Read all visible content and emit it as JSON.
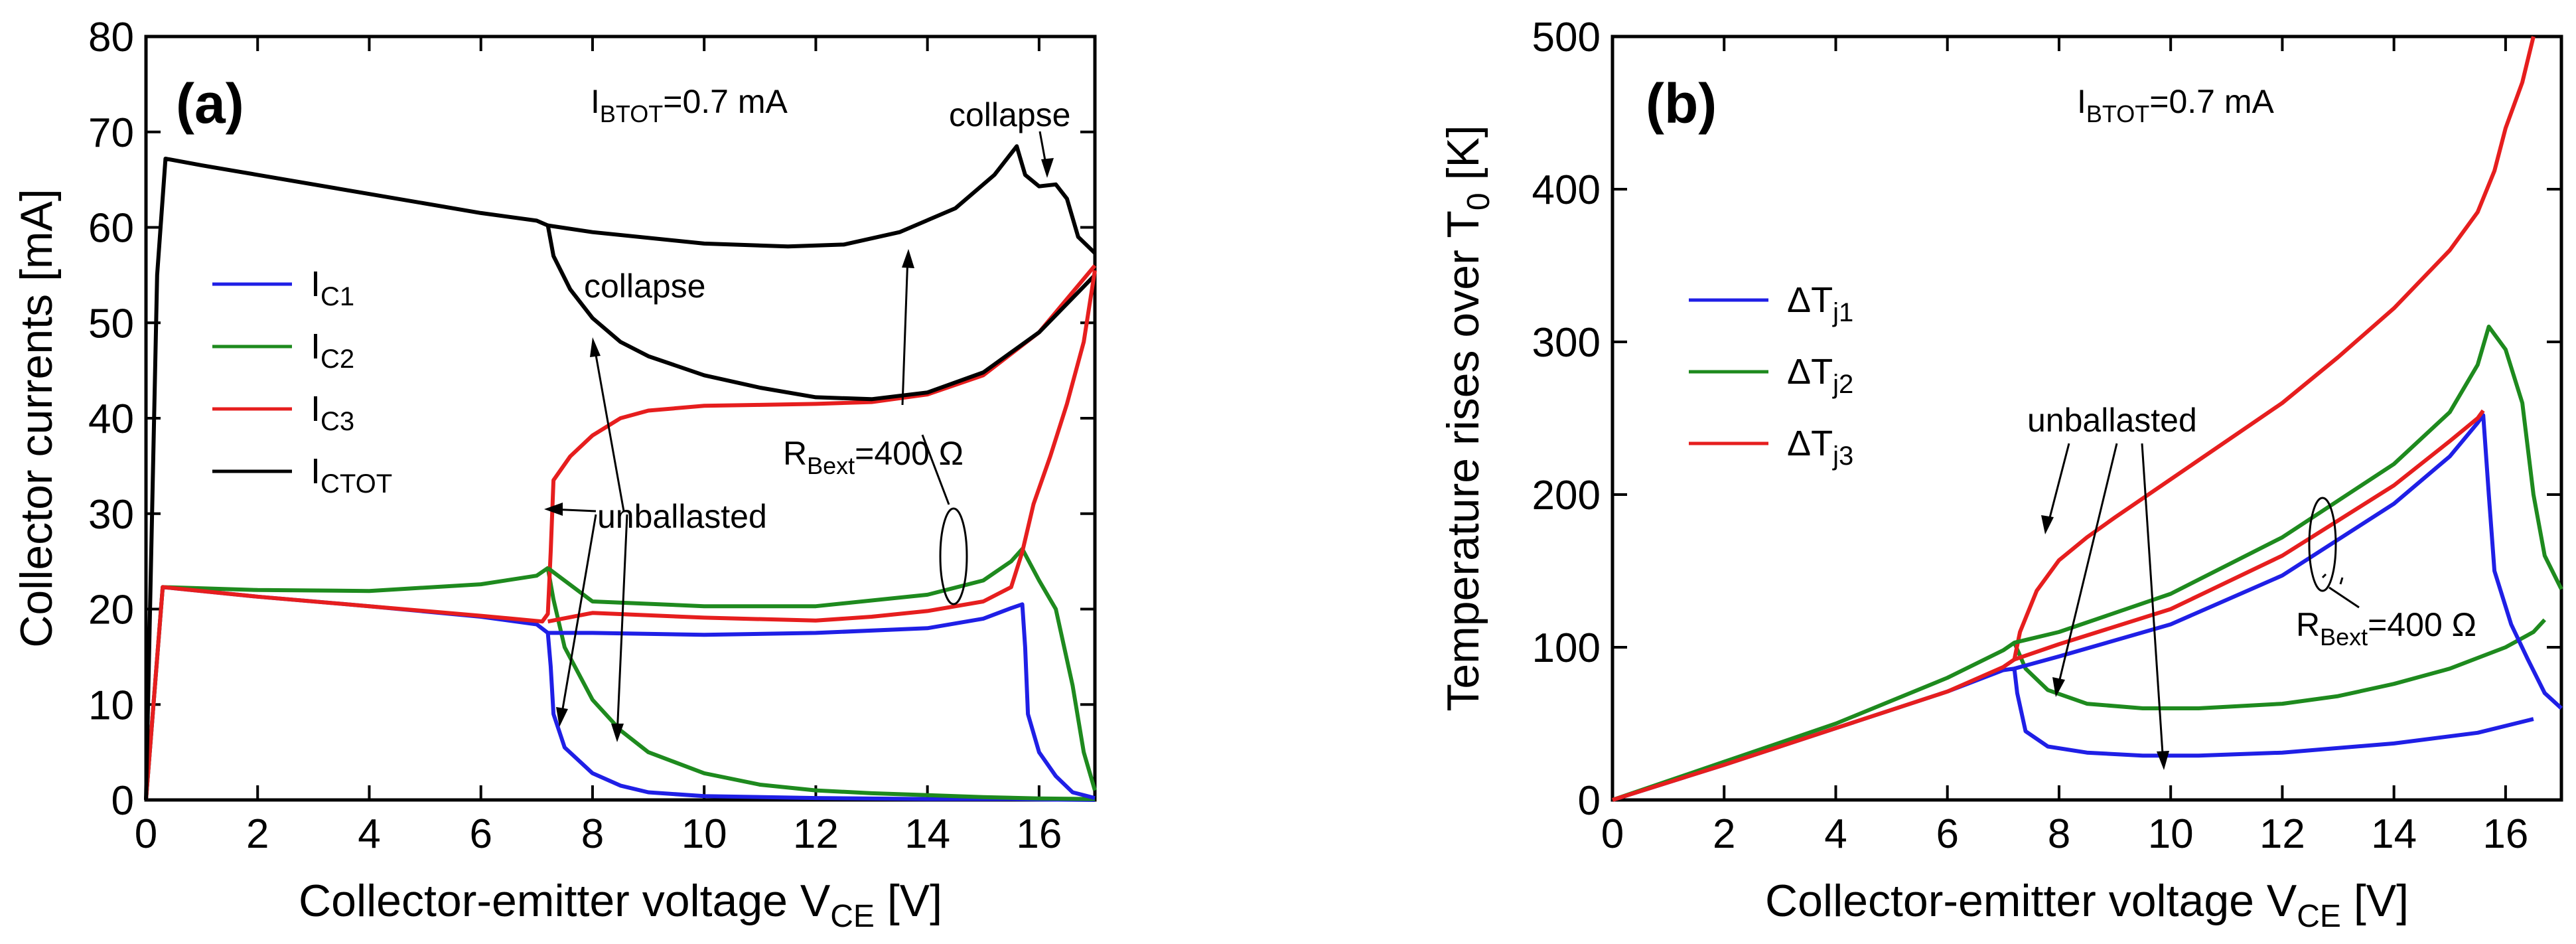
{
  "chart_data": [
    {
      "type": "line",
      "panel_label": "(a)",
      "xlabel": "Collector-emitter voltage V",
      "xlabel_sub": "CE",
      "xlabel_unit": " [V]",
      "ylabel": "Collector currents [mA]",
      "xlim": [
        0,
        17
      ],
      "ylim": [
        0,
        80
      ],
      "xticks": [
        "0",
        "2",
        "4",
        "6",
        "8",
        "10",
        "12",
        "14",
        "16"
      ],
      "yticks": [
        "0",
        "10",
        "20",
        "30",
        "40",
        "50",
        "60",
        "70",
        "80"
      ],
      "grid": false,
      "legend_placement": "left",
      "annotations": {
        "ibtot_main": "I",
        "ibtot_sub": "BTOT",
        "ibtot_val": "=0.7 mA",
        "collapse_top": "collapse",
        "collapse_mid": "collapse",
        "unballasted": "unballasted",
        "rbext_main": "R",
        "rbext_sub": "Bext",
        "rbext_val": "=400 Ω"
      },
      "series": [
        {
          "name": "I",
          "sub": "C1",
          "color": "#1f1fe6",
          "points": [
            [
              0,
              0
            ],
            [
              0.3,
              22.3
            ],
            [
              2,
              21.3
            ],
            [
              4,
              20.3
            ],
            [
              6,
              19.2
            ],
            [
              7.0,
              18.4
            ],
            [
              7.2,
              17.5
            ],
            [
              7.25,
              14
            ],
            [
              7.3,
              9
            ],
            [
              7.5,
              5.5
            ],
            [
              8,
              2.8
            ],
            [
              8.5,
              1.5
            ],
            [
              9,
              0.8
            ],
            [
              10,
              0.4
            ],
            [
              12,
              0.2
            ],
            [
              14,
              0.1
            ],
            [
              15.5,
              0.1
            ],
            [
              16,
              0.05
            ],
            [
              17,
              0
            ]
          ]
        },
        {
          "name": "I",
          "sub": "C2",
          "color": "#1e8a1e",
          "points": [
            [
              0,
              0
            ],
            [
              0.3,
              22.3
            ],
            [
              2,
              22
            ],
            [
              4,
              21.9
            ],
            [
              6,
              22.6
            ],
            [
              7.0,
              23.5
            ],
            [
              7.2,
              24.3
            ],
            [
              7.3,
              21
            ],
            [
              7.5,
              16
            ],
            [
              8,
              10.5
            ],
            [
              8.5,
              7.3
            ],
            [
              9,
              5
            ],
            [
              10,
              2.8
            ],
            [
              11,
              1.6
            ],
            [
              12,
              1.0
            ],
            [
              13,
              0.7
            ],
            [
              14,
              0.5
            ],
            [
              15,
              0.3
            ],
            [
              16,
              0.15
            ],
            [
              17,
              0.1
            ]
          ]
        },
        {
          "name": "I",
          "sub": "C3",
          "color": "#e61e1e",
          "points": [
            [
              0,
              0
            ],
            [
              0.3,
              22.3
            ],
            [
              2,
              21.3
            ],
            [
              4,
              20.3
            ],
            [
              6,
              19.3
            ],
            [
              7.1,
              18.7
            ],
            [
              7.2,
              19.5
            ],
            [
              7.25,
              26
            ],
            [
              7.3,
              33.5
            ],
            [
              7.6,
              36
            ],
            [
              8,
              38.2
            ],
            [
              8.5,
              40
            ],
            [
              9,
              40.8
            ],
            [
              10,
              41.3
            ],
            [
              11,
              41.4
            ],
            [
              12,
              41.5
            ],
            [
              13,
              41.7
            ],
            [
              14,
              42.5
            ],
            [
              15,
              44.5
            ],
            [
              16,
              49
            ],
            [
              16.5,
              52.5
            ],
            [
              17,
              56
            ]
          ]
        },
        {
          "name": "I",
          "sub": "CTOT",
          "color": "#000000",
          "points": [
            [
              0,
              0
            ],
            [
              0.2,
              55
            ],
            [
              0.35,
              67.2
            ],
            [
              1,
              66.5
            ],
            [
              2,
              65.5
            ],
            [
              4,
              63.5
            ],
            [
              6,
              61.5
            ],
            [
              7.0,
              60.7
            ],
            [
              7.2,
              60.2
            ],
            [
              7.3,
              57
            ],
            [
              7.6,
              53.5
            ],
            [
              8,
              50.5
            ],
            [
              8.5,
              48
            ],
            [
              9,
              46.5
            ],
            [
              10,
              44.5
            ],
            [
              11,
              43.2
            ],
            [
              12,
              42.2
            ],
            [
              13,
              42
            ],
            [
              14,
              42.7
            ],
            [
              15,
              44.8
            ],
            [
              16,
              49
            ],
            [
              17,
              55
            ]
          ]
        },
        {
          "name": "",
          "sub": "",
          "color": "#1f1fe6",
          "points": [
            [
              7.2,
              17.5
            ],
            [
              8,
              17.5
            ],
            [
              10,
              17.3
            ],
            [
              12,
              17.5
            ],
            [
              14,
              18
            ],
            [
              15,
              19
            ],
            [
              15.5,
              20.1
            ],
            [
              15.7,
              20.5
            ],
            [
              15.75,
              16
            ],
            [
              15.8,
              9
            ],
            [
              16,
              5
            ],
            [
              16.3,
              2.5
            ],
            [
              16.6,
              0.8
            ],
            [
              17,
              0.2
            ]
          ]
        },
        {
          "name": "",
          "sub": "",
          "color": "#1e8a1e",
          "points": [
            [
              7.2,
              24.3
            ],
            [
              8,
              20.8
            ],
            [
              10,
              20.3
            ],
            [
              12,
              20.3
            ],
            [
              14,
              21.5
            ],
            [
              15,
              23
            ],
            [
              15.5,
              25
            ],
            [
              15.7,
              26.3
            ],
            [
              16,
              23
            ],
            [
              16.3,
              20
            ],
            [
              16.6,
              12
            ],
            [
              16.8,
              5
            ],
            [
              17,
              1
            ]
          ]
        },
        {
          "name": "",
          "sub": "",
          "color": "#e61e1e",
          "points": [
            [
              7.2,
              18.7
            ],
            [
              8,
              19.6
            ],
            [
              10,
              19.1
            ],
            [
              12,
              18.8
            ],
            [
              13,
              19.2
            ],
            [
              14,
              19.8
            ],
            [
              15,
              20.8
            ],
            [
              15.5,
              22.3
            ],
            [
              15.7,
              26
            ],
            [
              15.9,
              31
            ],
            [
              16.2,
              36
            ],
            [
              16.5,
              41.5
            ],
            [
              16.8,
              48
            ],
            [
              17,
              55.5
            ]
          ]
        },
        {
          "name": "",
          "sub": "",
          "color": "#000000",
          "points": [
            [
              7.2,
              60.2
            ],
            [
              8,
              59.5
            ],
            [
              10,
              58.3
            ],
            [
              11.5,
              58
            ],
            [
              12.5,
              58.2
            ],
            [
              13.5,
              59.5
            ],
            [
              14.5,
              62
            ],
            [
              15.2,
              65.5
            ],
            [
              15.6,
              68.5
            ],
            [
              15.75,
              65.5
            ],
            [
              16.0,
              64.3
            ],
            [
              16.3,
              64.5
            ],
            [
              16.5,
              63
            ],
            [
              16.7,
              59
            ],
            [
              17,
              57.3
            ]
          ]
        }
      ]
    },
    {
      "type": "line",
      "panel_label": "(b)",
      "xlabel": "Collector-emitter voltage V",
      "xlabel_sub": "CE",
      "xlabel_unit": " [V]",
      "ylabel": "Temperature rises over T",
      "ylabel_sub": "0",
      "ylabel_unit": " [K]",
      "xlim": [
        0,
        17
      ],
      "ylim": [
        0,
        500
      ],
      "xticks": [
        "0",
        "2",
        "4",
        "6",
        "8",
        "10",
        "12",
        "14",
        "16"
      ],
      "yticks": [
        "0",
        "100",
        "200",
        "300",
        "400",
        "500"
      ],
      "grid": false,
      "legend_placement": "left",
      "annotations": {
        "ibtot_main": "I",
        "ibtot_sub": "BTOT",
        "ibtot_val": "=0.7 mA",
        "unballasted": "unballasted",
        "rbext_main": "R",
        "rbext_sub": "Bext",
        "rbext_val": "=400 Ω"
      },
      "series": [
        {
          "name": "ΔT",
          "sub": "j1",
          "color": "#1f1fe6",
          "points": [
            [
              0,
              0
            ],
            [
              2,
              23
            ],
            [
              4,
              47
            ],
            [
              6,
              71
            ],
            [
              7.0,
              85
            ],
            [
              7.2,
              86
            ],
            [
              7.25,
              70
            ],
            [
              7.4,
              45
            ],
            [
              7.8,
              35
            ],
            [
              8.5,
              31
            ],
            [
              9.5,
              29
            ],
            [
              10.5,
              29
            ],
            [
              12,
              31
            ],
            [
              14,
              37
            ],
            [
              15.5,
              44
            ],
            [
              16.5,
              53
            ]
          ]
        },
        {
          "name": "ΔT",
          "sub": "j2",
          "color": "#1e8a1e",
          "points": [
            [
              0,
              0
            ],
            [
              2,
              25
            ],
            [
              4,
              50
            ],
            [
              6,
              80
            ],
            [
              7.0,
              98
            ],
            [
              7.2,
              103
            ],
            [
              7.4,
              86
            ],
            [
              7.8,
              72
            ],
            [
              8.5,
              63
            ],
            [
              9.5,
              60
            ],
            [
              10.5,
              60
            ],
            [
              12,
              63
            ],
            [
              13,
              68
            ],
            [
              14,
              76
            ],
            [
              15,
              86
            ],
            [
              16,
              100
            ],
            [
              16.5,
              110
            ],
            [
              16.7,
              118
            ]
          ]
        },
        {
          "name": "ΔT",
          "sub": "j3",
          "color": "#e61e1e",
          "points": [
            [
              0,
              0
            ],
            [
              2,
              23
            ],
            [
              4,
              47
            ],
            [
              6,
              71
            ],
            [
              7.0,
              87
            ],
            [
              7.2,
              92
            ],
            [
              7.3,
              110
            ],
            [
              7.6,
              137
            ],
            [
              8,
              157
            ],
            [
              8.5,
              172
            ],
            [
              9,
              185
            ],
            [
              10,
              210
            ],
            [
              11,
              235
            ],
            [
              12,
              260
            ],
            [
              13,
              290
            ],
            [
              14,
              322
            ],
            [
              15,
              360
            ],
            [
              15.5,
              385
            ],
            [
              15.8,
              412
            ],
            [
              16,
              440
            ],
            [
              16.3,
              470
            ],
            [
              16.5,
              500
            ]
          ]
        },
        {
          "name": "",
          "sub": "",
          "color": "#1f1fe6",
          "points": [
            [
              7.2,
              86
            ],
            [
              8,
              94
            ],
            [
              10,
              115
            ],
            [
              12,
              147
            ],
            [
              14,
              194
            ],
            [
              15,
              225
            ],
            [
              15.5,
              247
            ],
            [
              15.6,
              252
            ],
            [
              15.7,
              200
            ],
            [
              15.8,
              150
            ],
            [
              16.1,
              115
            ],
            [
              16.4,
              92
            ],
            [
              16.7,
              70
            ],
            [
              17,
              60
            ]
          ]
        },
        {
          "name": "",
          "sub": "",
          "color": "#1e8a1e",
          "points": [
            [
              7.2,
              103
            ],
            [
              8,
              110
            ],
            [
              10,
              135
            ],
            [
              12,
              172
            ],
            [
              14,
              220
            ],
            [
              15,
              254
            ],
            [
              15.5,
              285
            ],
            [
              15.7,
              310
            ],
            [
              16,
              295
            ],
            [
              16.3,
              260
            ],
            [
              16.5,
              200
            ],
            [
              16.7,
              160
            ],
            [
              17,
              138
            ]
          ]
        },
        {
          "name": "",
          "sub": "",
          "color": "#e61e1e",
          "points": [
            [
              7.2,
              92
            ],
            [
              8,
              102
            ],
            [
              10,
              125
            ],
            [
              12,
              160
            ],
            [
              14,
              206
            ],
            [
              15,
              235
            ],
            [
              15.5,
              250
            ],
            [
              15.6,
              255
            ]
          ]
        }
      ]
    }
  ]
}
